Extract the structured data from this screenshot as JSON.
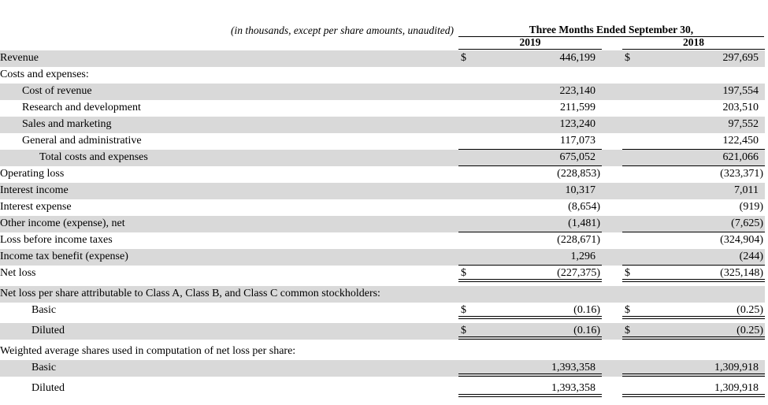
{
  "header": {
    "note": "(in thousands, except per share amounts, unaudited)",
    "period_label": "Three Months Ended September 30,",
    "col_2019": "2019",
    "col_2018": "2018"
  },
  "colors": {
    "stripe": "#d9d9d9",
    "rule": "#000000",
    "text": "#000000",
    "background": "#ffffff"
  },
  "rows": [
    {
      "label": "Revenue",
      "cur1": "$",
      "v1": "446,199",
      "cur2": "$",
      "v2": "297,695"
    },
    {
      "label": "Costs and expenses:"
    },
    {
      "label": "Cost of revenue",
      "v1": "223,140",
      "v2": "197,554"
    },
    {
      "label": "Research and development",
      "v1": "211,599",
      "v2": "203,510"
    },
    {
      "label": "Sales and marketing",
      "v1": "123,240",
      "v2": "97,552"
    },
    {
      "label": "General and administrative",
      "v1": "117,073",
      "v2": "122,450"
    },
    {
      "label": "Total costs and expenses",
      "v1": "675,052",
      "v2": "621,066"
    },
    {
      "label": "Operating loss",
      "v1": "(228,853)",
      "v2": "(323,371)"
    },
    {
      "label": "Interest income",
      "v1": "10,317",
      "v2": "7,011"
    },
    {
      "label": "Interest expense",
      "v1": "(8,654)",
      "v2": "(919)"
    },
    {
      "label": "Other income (expense), net",
      "v1": "(1,481)",
      "v2": "(7,625)"
    },
    {
      "label": "Loss before income taxes",
      "v1": "(228,671)",
      "v2": "(324,904)"
    },
    {
      "label": "Income tax benefit (expense)",
      "v1": "1,296",
      "v2": "(244)"
    },
    {
      "label": "Net loss",
      "cur1": "$",
      "v1": "(227,375)",
      "cur2": "$",
      "v2": "(325,148)"
    },
    {
      "label": "Net loss per share attributable to Class A, Class B, and Class C common stockholders:"
    },
    {
      "label": "Basic",
      "cur1": "$",
      "v1": "(0.16)",
      "cur2": "$",
      "v2": "(0.25)"
    },
    {
      "label": "Diluted",
      "cur1": "$",
      "v1": "(0.16)",
      "cur2": "$",
      "v2": "(0.25)"
    },
    {
      "label": "Weighted average shares used in computation of net loss per share:"
    },
    {
      "label": "Basic",
      "v1": "1,393,358",
      "v2": "1,309,918"
    },
    {
      "label": "Diluted",
      "v1": "1,393,358",
      "v2": "1,309,918"
    }
  ]
}
